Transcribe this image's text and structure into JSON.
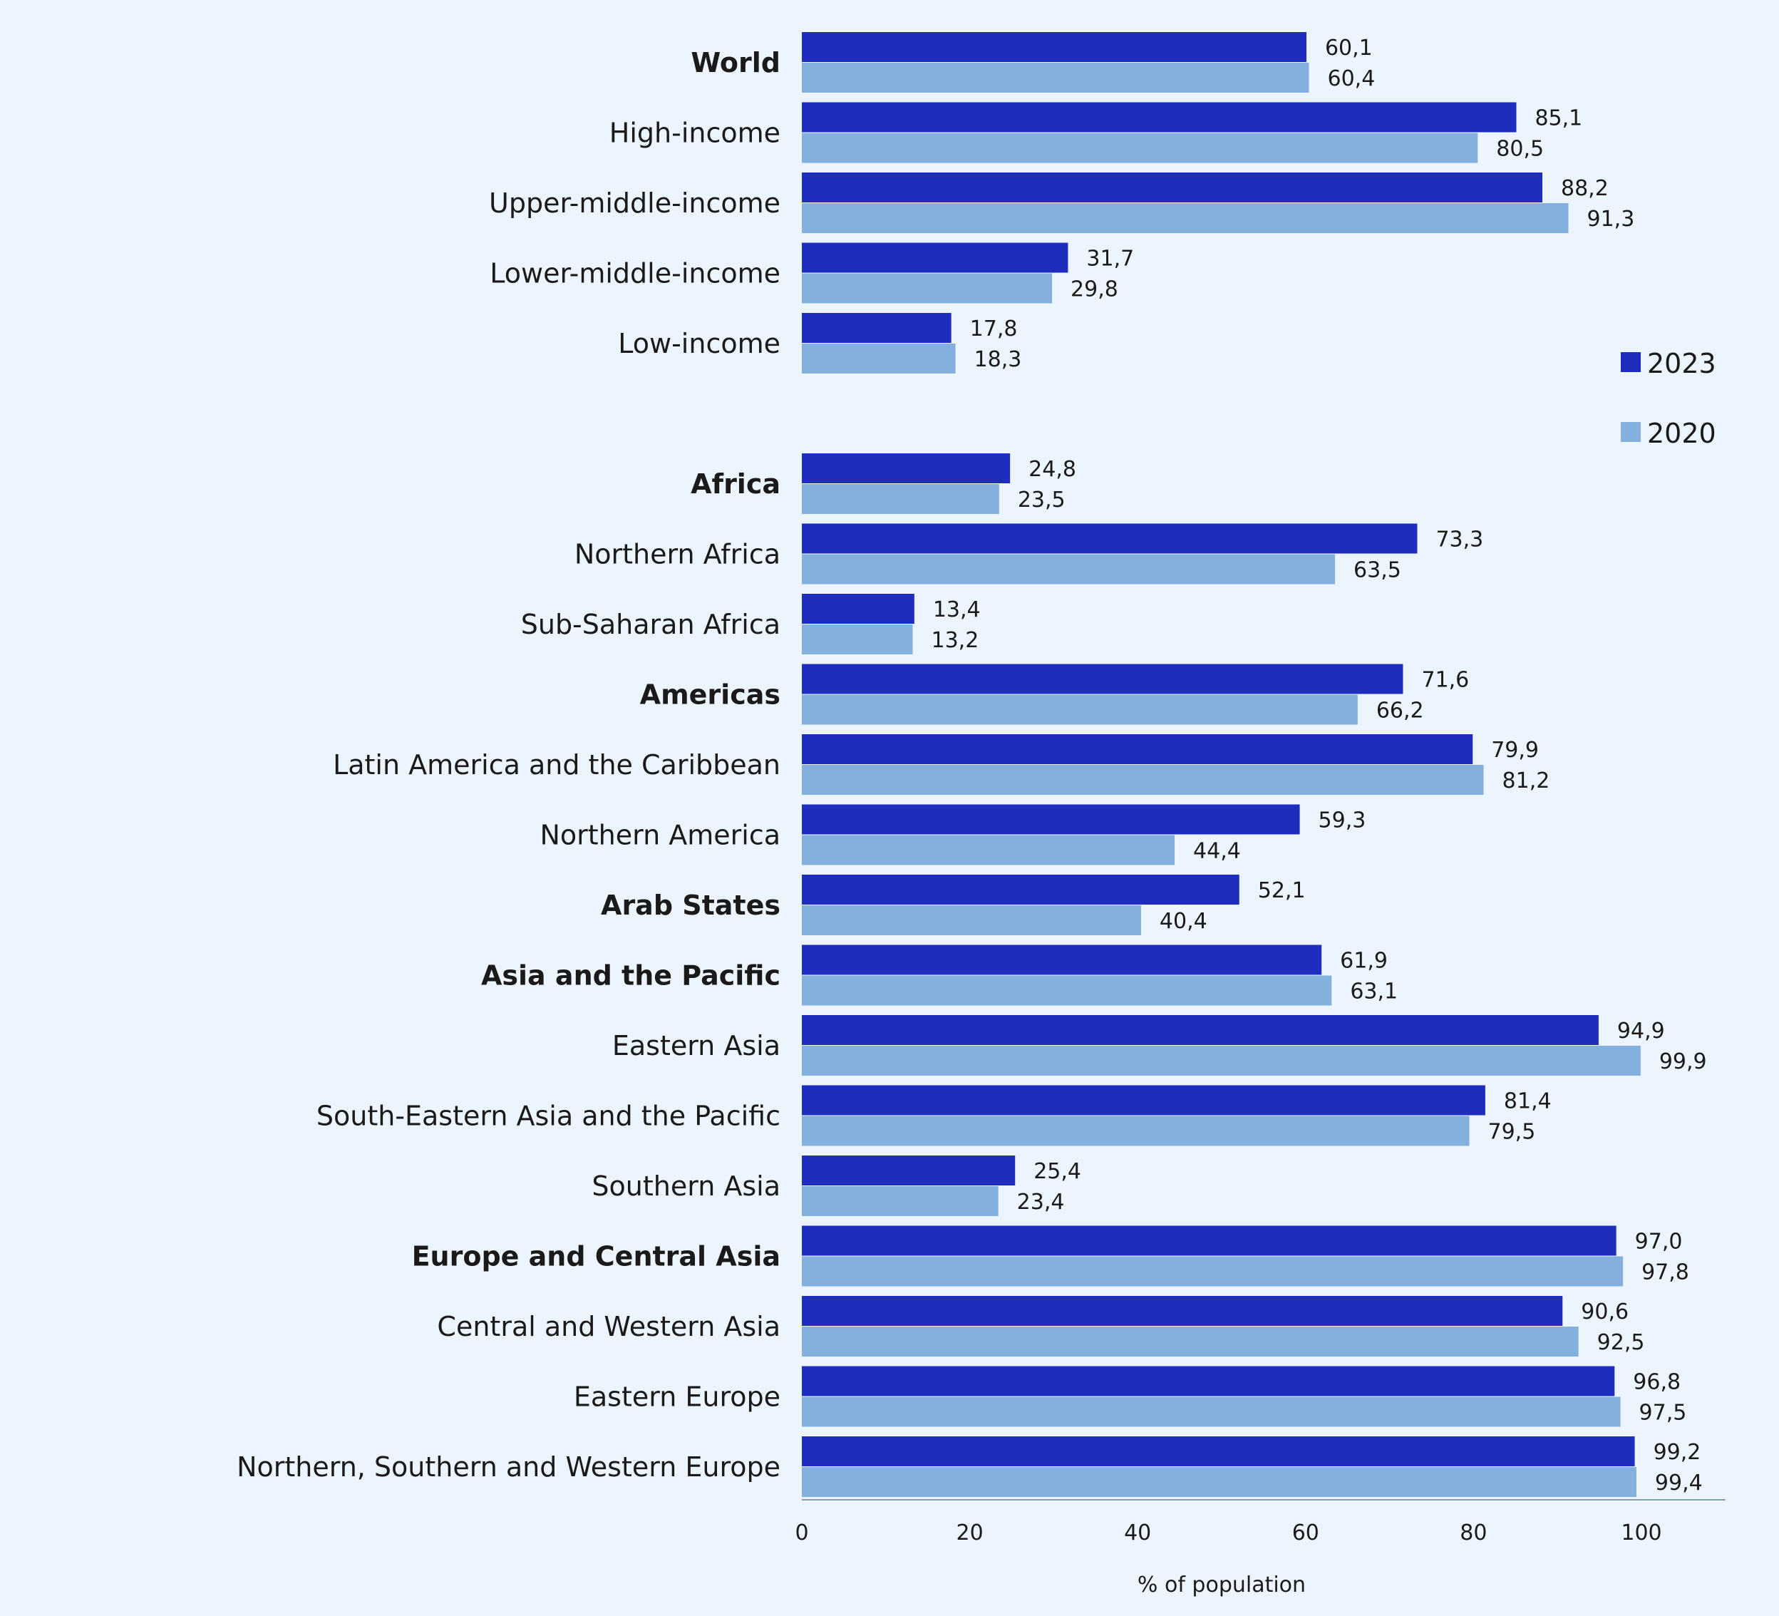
{
  "chart_data": {
    "type": "bar",
    "orientation": "horizontal",
    "xlabel": "% of population",
    "xlim": [
      0,
      110
    ],
    "xticks": [
      0,
      20,
      40,
      60,
      80,
      100
    ],
    "legend_position": "right",
    "series": [
      {
        "name": "2023",
        "color": "#1f2dbf",
        "values": [
          60.1,
          85.1,
          88.2,
          31.7,
          17.8,
          24.8,
          73.3,
          13.4,
          71.6,
          79.9,
          59.3,
          52.1,
          61.9,
          94.9,
          81.4,
          25.4,
          97.0,
          90.6,
          96.8,
          99.2
        ],
        "labels": [
          "60,1",
          "85,1",
          "88,2",
          "31,7",
          "17,8",
          "24,8",
          "73,3",
          "13,4",
          "71,6",
          "79,9",
          "59,3",
          "52,1",
          "61,9",
          "94,9",
          "81,4",
          "25,4",
          "97,0",
          "90,6",
          "96,8",
          "99,2"
        ]
      },
      {
        "name": "2020",
        "color": "#84b0de",
        "values": [
          60.4,
          80.5,
          91.3,
          29.8,
          18.3,
          23.5,
          63.5,
          13.2,
          66.2,
          81.2,
          44.4,
          40.4,
          63.1,
          99.9,
          79.5,
          23.4,
          97.8,
          92.5,
          97.5,
          99.4
        ],
        "labels": [
          "60,4",
          "80,5",
          "91,3",
          "29,8",
          "18,3",
          "23,5",
          "63,5",
          "13,2",
          "66,2",
          "81,2",
          "44,4",
          "40,4",
          "63,1",
          "99,9",
          "79,5",
          "23,4",
          "97,8",
          "92,5",
          "97,5",
          "99,4"
        ]
      }
    ],
    "categories": [
      "World",
      "High-income",
      "Upper-middle-income",
      "Lower-middle-income",
      "Low-income",
      "Africa",
      "Northern Africa",
      "Sub-Saharan Africa",
      "Americas",
      "Latin America and the Caribbean",
      "Northern America",
      "Arab States",
      "Asia and the Pacific",
      "Eastern Asia",
      "South-Eastern Asia and the Pacific",
      "Southern Asia",
      "Europe and Central Asia",
      "Central and Western Asia",
      "Eastern Europe",
      "Northern, Southern and Western Europe"
    ],
    "bold_categories": [
      "World",
      "Africa",
      "Americas",
      "Arab States",
      "Asia and the Pacific",
      "Europe and Central Asia"
    ]
  }
}
